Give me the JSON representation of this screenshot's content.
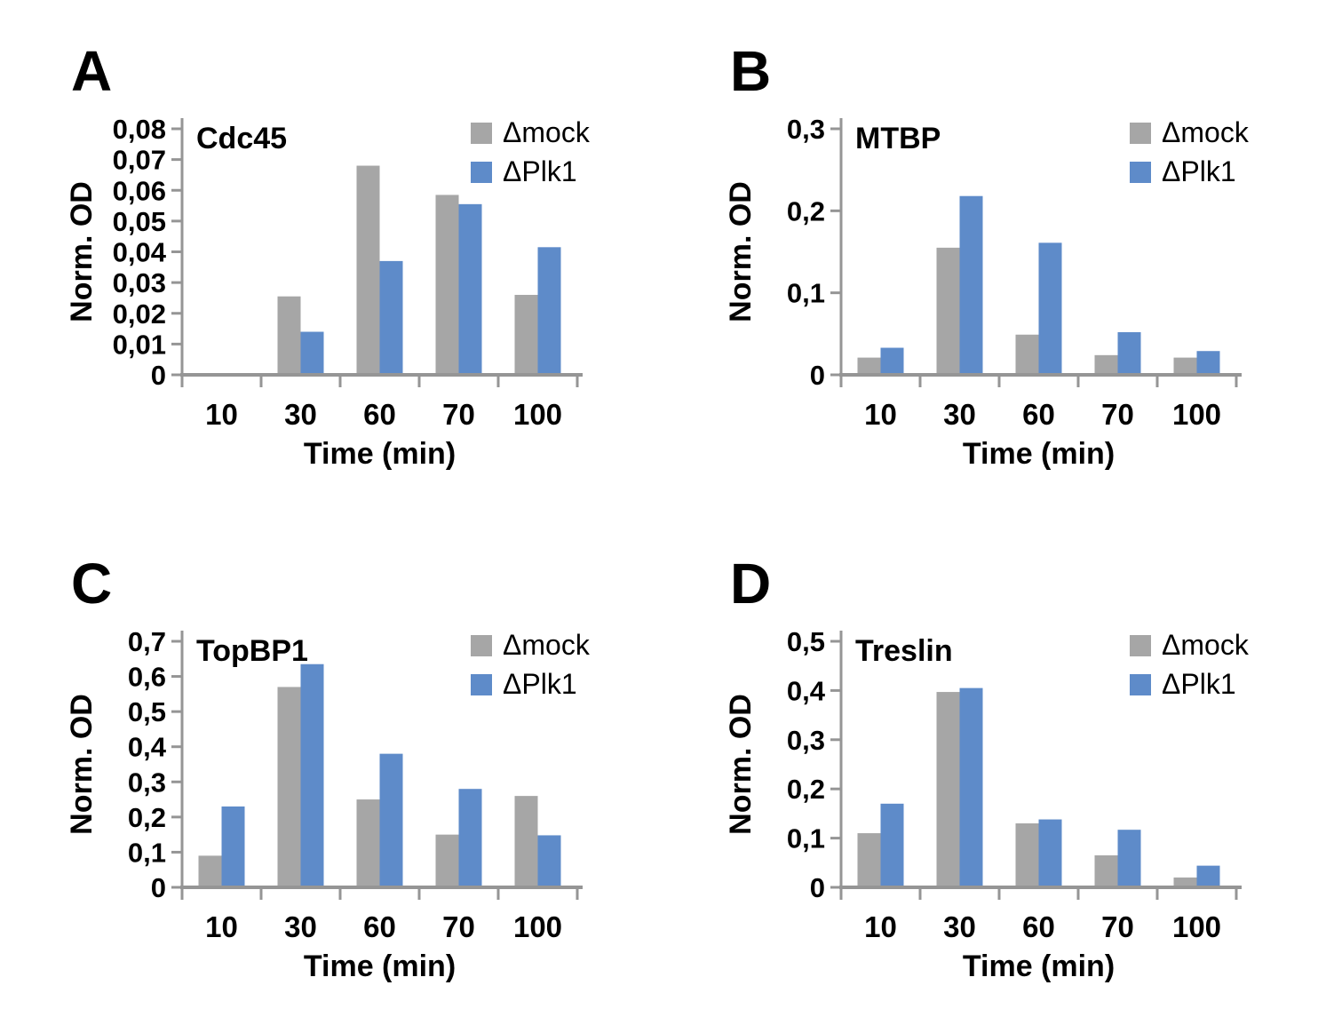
{
  "styles": {
    "bar_gray": "#a6a6a6",
    "bar_blue": "#5e8bc9",
    "axis_color": "#959595",
    "text_color": "#000000",
    "background": "#ffffff"
  },
  "chart_data": [
    {
      "type": "bar",
      "panel_label": "A",
      "title": "Cdc45",
      "xlabel": "Time (min)",
      "ylabel": "Norm. OD",
      "categories": [
        "10",
        "30",
        "60",
        "70",
        "100"
      ],
      "series": [
        {
          "name": "Δmock",
          "key": "mock",
          "color": "#a6a6a6",
          "values": [
            0,
            0.0255,
            0.068,
            0.0585,
            0.026
          ]
        },
        {
          "name": "ΔPlk1",
          "key": "plk1",
          "color": "#5e8bc9",
          "values": [
            0,
            0.014,
            0.037,
            0.0555,
            0.0415
          ]
        }
      ],
      "ylim": [
        0,
        0.08
      ],
      "ytick_labels": [
        "0",
        "0,01",
        "0,02",
        "0,03",
        "0,04",
        "0,05",
        "0,06",
        "0,07",
        "0,08"
      ],
      "legend_position": "top-right",
      "grid": false
    },
    {
      "type": "bar",
      "panel_label": "B",
      "title": "MTBP",
      "xlabel": "Time (min)",
      "ylabel": "Norm. OD",
      "categories": [
        "10",
        "30",
        "60",
        "70",
        "100"
      ],
      "series": [
        {
          "name": "Δmock",
          "key": "mock",
          "color": "#a6a6a6",
          "values": [
            0.021,
            0.155,
            0.049,
            0.024,
            0.021
          ]
        },
        {
          "name": "ΔPlk1",
          "key": "plk1",
          "color": "#5e8bc9",
          "values": [
            0.033,
            0.218,
            0.161,
            0.052,
            0.029
          ]
        }
      ],
      "ylim": [
        0,
        0.3
      ],
      "ytick_labels": [
        "0",
        "0,1",
        "0,2",
        "0,3"
      ],
      "legend_position": "top-right",
      "grid": false
    },
    {
      "type": "bar",
      "panel_label": "C",
      "title": "TopBP1",
      "xlabel": "Time (min)",
      "ylabel": "Norm. OD",
      "categories": [
        "10",
        "30",
        "60",
        "70",
        "100"
      ],
      "series": [
        {
          "name": "Δmock",
          "key": "mock",
          "color": "#a6a6a6",
          "values": [
            0.09,
            0.57,
            0.25,
            0.15,
            0.26
          ]
        },
        {
          "name": "ΔPlk1",
          "key": "plk1",
          "color": "#5e8bc9",
          "values": [
            0.23,
            0.635,
            0.38,
            0.28,
            0.148
          ]
        }
      ],
      "ylim": [
        0,
        0.7
      ],
      "ytick_labels": [
        "0",
        "0,1",
        "0,2",
        "0,3",
        "0,4",
        "0,5",
        "0,6",
        "0,7"
      ],
      "legend_position": "top-right",
      "grid": false
    },
    {
      "type": "bar",
      "panel_label": "D",
      "title": "Treslin",
      "xlabel": "Time (min)",
      "ylabel": "Norm. OD",
      "categories": [
        "10",
        "30",
        "60",
        "70",
        "100"
      ],
      "series": [
        {
          "name": "Δmock",
          "key": "mock",
          "color": "#a6a6a6",
          "values": [
            0.11,
            0.397,
            0.13,
            0.065,
            0.02
          ]
        },
        {
          "name": "ΔPlk1",
          "key": "plk1",
          "color": "#5e8bc9",
          "values": [
            0.17,
            0.405,
            0.138,
            0.117,
            0.044
          ]
        }
      ],
      "ylim": [
        0,
        0.5
      ],
      "ytick_labels": [
        "0",
        "0,1",
        "0,2",
        "0,3",
        "0,4",
        "0,5"
      ],
      "legend_position": "top-right",
      "grid": false
    }
  ]
}
